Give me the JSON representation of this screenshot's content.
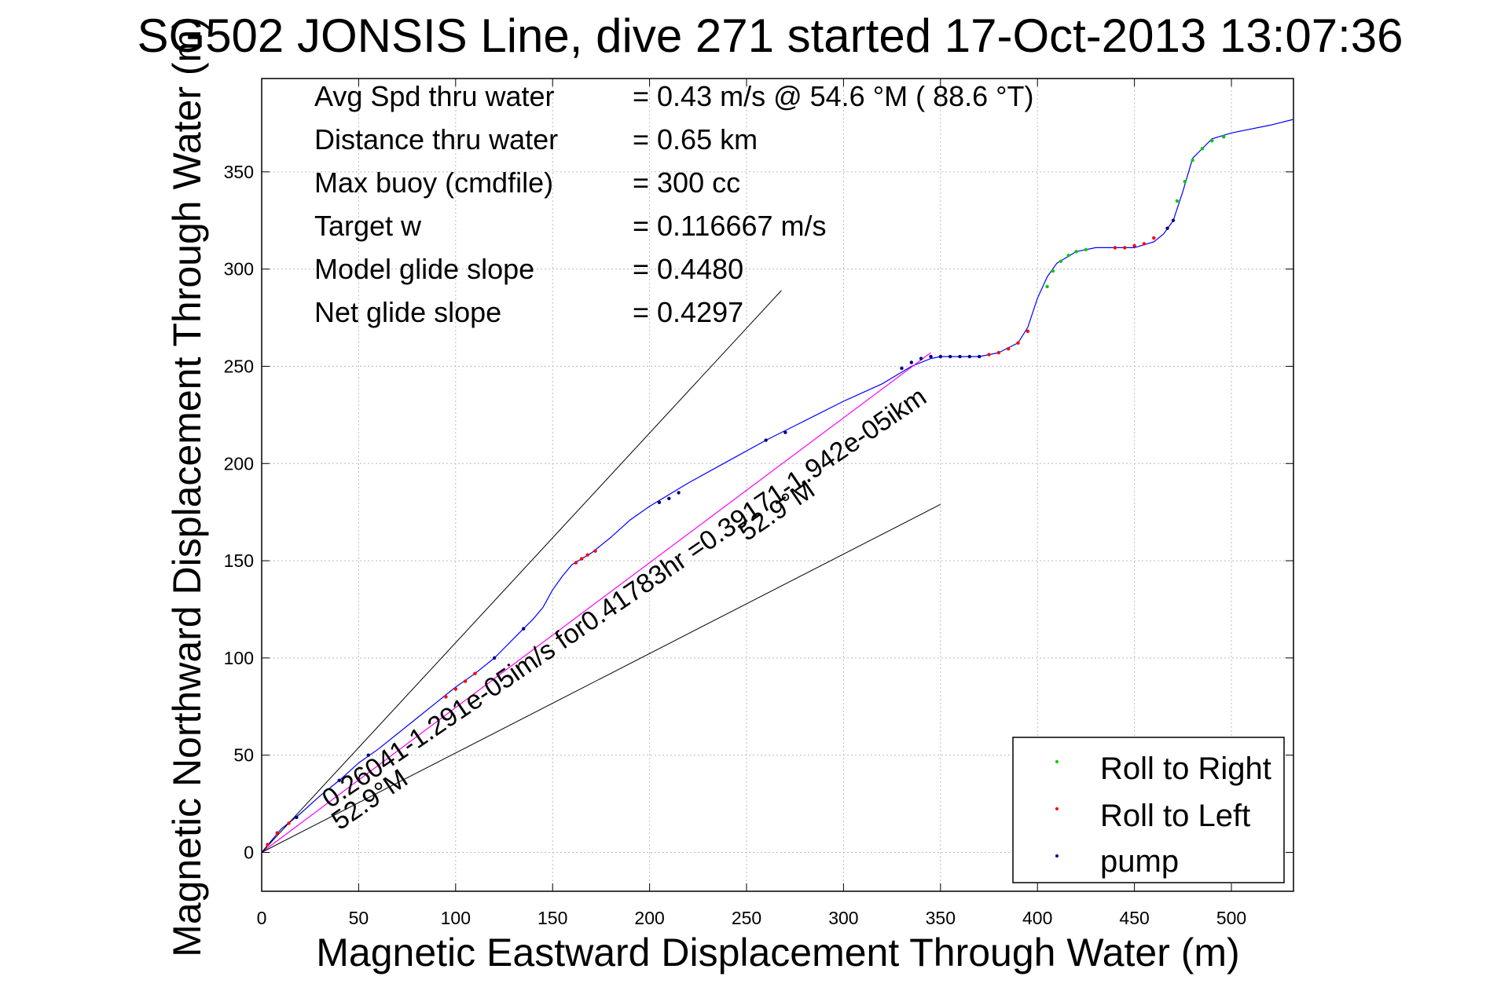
{
  "colors": {
    "track": "#0000ff",
    "net_line": "#ff00ff",
    "roll_right": "#00cc00",
    "roll_left": "#ff0000",
    "pump": "#000080",
    "envelope": "#000000",
    "grid": "#bbbbbb"
  },
  "chart_data": {
    "type": "line",
    "title": "SG502 JONSIS Line, dive 271 started 17-Oct-2013 13:07:36",
    "xlabel": "Magnetic Eastward Displacement Through Water (m)",
    "ylabel": "Magnetic Northward Displacement Through Water (m)",
    "xlim": [
      0,
      532
    ],
    "ylim": [
      -20,
      398
    ],
    "xticks": [
      0,
      50,
      100,
      150,
      200,
      250,
      300,
      350,
      400,
      450,
      500
    ],
    "yticks": [
      0,
      50,
      100,
      150,
      200,
      250,
      300,
      350
    ],
    "grid": true,
    "legend_position": "bottom-right",
    "legend": [
      "Roll to Right",
      "Roll to Left",
      "pump"
    ],
    "annotations": [
      {
        "label": "Avg Spd thru water",
        "value": "=  0.43 m/s @  54.6 °M ( 88.6 °T)"
      },
      {
        "label": "Distance thru water",
        "value": "=  0.65 km"
      },
      {
        "label": "Max buoy (cmdfile)",
        "value": "= 300 cc"
      },
      {
        "label": "Target w",
        "value": "= 0.116667 m/s"
      },
      {
        "label": "Model glide slope",
        "value": "= 0.4480"
      },
      {
        "label": "Net glide slope",
        "value": "= 0.4297"
      }
    ],
    "diagonal_texts": [
      "0.26041-1.291e-05im/s for0.41783hr =0.39171-1.942e-05ikm",
      "52.9°M",
      "52.9°M"
    ],
    "series": [
      {
        "name": "track",
        "x": [
          0,
          5,
          10,
          15,
          20,
          30,
          40,
          50,
          60,
          70,
          80,
          90,
          100,
          110,
          120,
          130,
          140,
          145,
          150,
          155,
          160,
          165,
          170,
          180,
          190,
          200,
          210,
          220,
          240,
          260,
          280,
          300,
          320,
          335,
          345,
          350,
          360,
          370,
          380,
          390,
          395,
          400,
          405,
          410,
          420,
          430,
          440,
          450,
          460,
          465,
          470,
          475,
          480,
          490,
          500,
          520,
          532
        ],
        "y": [
          0,
          6,
          12,
          16,
          20,
          29,
          37,
          46,
          53,
          61,
          69,
          77,
          85,
          92,
          100,
          110,
          120,
          126,
          135,
          142,
          148,
          151,
          154,
          162,
          171,
          178,
          184,
          190,
          201,
          212,
          222,
          232,
          241,
          250,
          254,
          255,
          255,
          255,
          257,
          262,
          270,
          285,
          296,
          303,
          309,
          311,
          311,
          311,
          314,
          318,
          325,
          340,
          357,
          367,
          370,
          374,
          377
        ]
      },
      {
        "name": "net",
        "x": [
          0,
          345
        ],
        "y": [
          0,
          257
        ]
      },
      {
        "name": "envelope-upper",
        "x": [
          0,
          268
        ],
        "y": [
          0,
          289
        ]
      },
      {
        "name": "envelope-lower",
        "x": [
          0,
          350
        ],
        "y": [
          0,
          179
        ]
      }
    ],
    "markers": [
      {
        "name": "Roll to Right",
        "x": [
          405,
          408,
          412,
          416,
          420,
          425,
          472,
          476,
          480,
          485,
          490,
          496
        ],
        "y": [
          291,
          299,
          304,
          307,
          309,
          310,
          335,
          345,
          356,
          362,
          366,
          368
        ]
      },
      {
        "name": "Roll to Left",
        "x": [
          3,
          8,
          14,
          95,
          100,
          105,
          110,
          162,
          165,
          168,
          172,
          375,
          380,
          385,
          390,
          395,
          440,
          445,
          450,
          455,
          460
        ],
        "y": [
          4,
          10,
          15,
          80,
          84,
          88,
          92,
          149,
          151,
          153,
          155,
          256,
          257,
          259,
          262,
          268,
          311,
          311,
          312,
          313,
          316
        ]
      },
      {
        "name": "pump",
        "x": [
          18,
          40,
          55,
          120,
          135,
          205,
          210,
          215,
          260,
          270,
          330,
          335,
          340,
          345,
          350,
          355,
          360,
          365,
          370,
          467,
          470
        ],
        "y": [
          18,
          37,
          50,
          100,
          115,
          180,
          182,
          185,
          212,
          216,
          249,
          252,
          254,
          255,
          255,
          255,
          255,
          255,
          255,
          321,
          325
        ]
      }
    ]
  }
}
